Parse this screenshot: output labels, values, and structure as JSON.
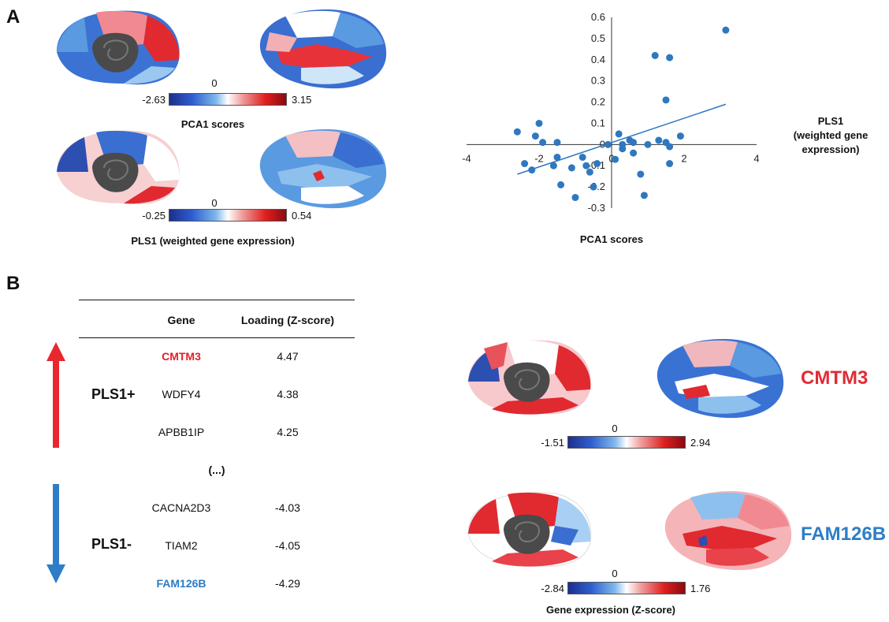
{
  "panels": {
    "a": "A",
    "b": "B"
  },
  "panel_a": {
    "map1": {
      "caption": "PCA1 scores",
      "cb_min": "-2.63",
      "cb_mid": "0",
      "cb_max": "3.15"
    },
    "map2": {
      "caption": "PLS1 (weighted gene expression)",
      "cb_min": "-0.25",
      "cb_mid": "0",
      "cb_max": "0.54"
    }
  },
  "chart_data": {
    "type": "scatter",
    "title": "",
    "xlabel": "PCA1 scores",
    "ylabel": "PLS1 (weighted gene expression)",
    "ylabel_lines": [
      "PLS1",
      "(weighted gene",
      "expression)"
    ],
    "xlim": [
      -4,
      4
    ],
    "ylim": [
      -0.3,
      0.6
    ],
    "xticks": [
      -4,
      -2,
      0,
      2,
      4
    ],
    "yticks": [
      -0.3,
      -0.2,
      -0.1,
      0,
      0.1,
      0.2,
      0.3,
      0.4,
      0.5,
      0.6
    ],
    "xtick_labels": [
      "-4",
      "-2",
      "0",
      "2",
      "4"
    ],
    "ytick_labels": [
      "-0.3",
      "-0.2",
      "-0.1",
      "0",
      "0.1",
      "0.2",
      "0.3",
      "0.4",
      "0.5",
      "0.6"
    ],
    "grid": false,
    "point_color": "#2f78c0",
    "points": [
      {
        "x": 3.15,
        "y": 0.54
      },
      {
        "x": 1.2,
        "y": 0.42
      },
      {
        "x": 1.6,
        "y": 0.41
      },
      {
        "x": 1.5,
        "y": 0.21
      },
      {
        "x": -2.6,
        "y": 0.06
      },
      {
        "x": -2.0,
        "y": 0.1
      },
      {
        "x": -2.1,
        "y": 0.04
      },
      {
        "x": -1.9,
        "y": 0.01
      },
      {
        "x": -1.5,
        "y": 0.01
      },
      {
        "x": -2.4,
        "y": -0.09
      },
      {
        "x": -2.2,
        "y": -0.12
      },
      {
        "x": -1.5,
        "y": -0.06
      },
      {
        "x": -1.6,
        "y": -0.1
      },
      {
        "x": -1.1,
        "y": -0.11
      },
      {
        "x": -0.8,
        "y": -0.06
      },
      {
        "x": -0.7,
        "y": -0.1
      },
      {
        "x": -0.6,
        "y": -0.13
      },
      {
        "x": -0.4,
        "y": -0.09
      },
      {
        "x": -0.1,
        "y": 0.0
      },
      {
        "x": 0.2,
        "y": 0.05
      },
      {
        "x": 0.3,
        "y": 0.0
      },
      {
        "x": 0.5,
        "y": 0.02
      },
      {
        "x": 0.6,
        "y": 0.01
      },
      {
        "x": 0.3,
        "y": -0.02
      },
      {
        "x": 0.6,
        "y": -0.04
      },
      {
        "x": 0.8,
        "y": -0.14
      },
      {
        "x": 0.9,
        "y": -0.24
      },
      {
        "x": 1.0,
        "y": 0.0
      },
      {
        "x": 1.3,
        "y": 0.02
      },
      {
        "x": 1.5,
        "y": 0.01
      },
      {
        "x": 1.6,
        "y": -0.01
      },
      {
        "x": 1.9,
        "y": 0.04
      },
      {
        "x": 1.6,
        "y": -0.09
      },
      {
        "x": -1.4,
        "y": -0.19
      },
      {
        "x": -1.0,
        "y": -0.25
      },
      {
        "x": -0.5,
        "y": -0.2
      },
      {
        "x": 0.1,
        "y": -0.07
      }
    ],
    "trendline": {
      "x": [
        -2.6,
        3.15
      ],
      "y": [
        -0.14,
        0.19
      ]
    }
  },
  "panel_b": {
    "table": {
      "headers": [
        "Gene",
        "Loading (Z-score)"
      ],
      "pos_label": "PLS1+",
      "neg_label": "PLS1-",
      "ellipsis": "(...)",
      "pos_rows": [
        {
          "gene": "CMTM3",
          "loading": "4.47"
        },
        {
          "gene": "WDFY4",
          "loading": "4.38"
        },
        {
          "gene": "APBB1IP",
          "loading": "4.25"
        }
      ],
      "neg_rows": [
        {
          "gene": "CACNA2D3",
          "loading": "-4.03"
        },
        {
          "gene": "TIAM2",
          "loading": "-4.05"
        },
        {
          "gene": "FAM126B",
          "loading": "-4.29"
        }
      ]
    },
    "map1": {
      "gene": "CMTM3",
      "cb_min": "-1.51",
      "cb_mid": "0",
      "cb_max": "2.94"
    },
    "map2": {
      "gene": "FAM126B",
      "cb_min": "-2.84",
      "cb_mid": "0",
      "cb_max": "1.76"
    },
    "caption": "Gene expression (Z-score)"
  },
  "colors": {
    "red": "#e0202c",
    "blue": "#2c7bc4",
    "arrow_red": "#e8272f",
    "arrow_blue": "#2d7ec6"
  }
}
